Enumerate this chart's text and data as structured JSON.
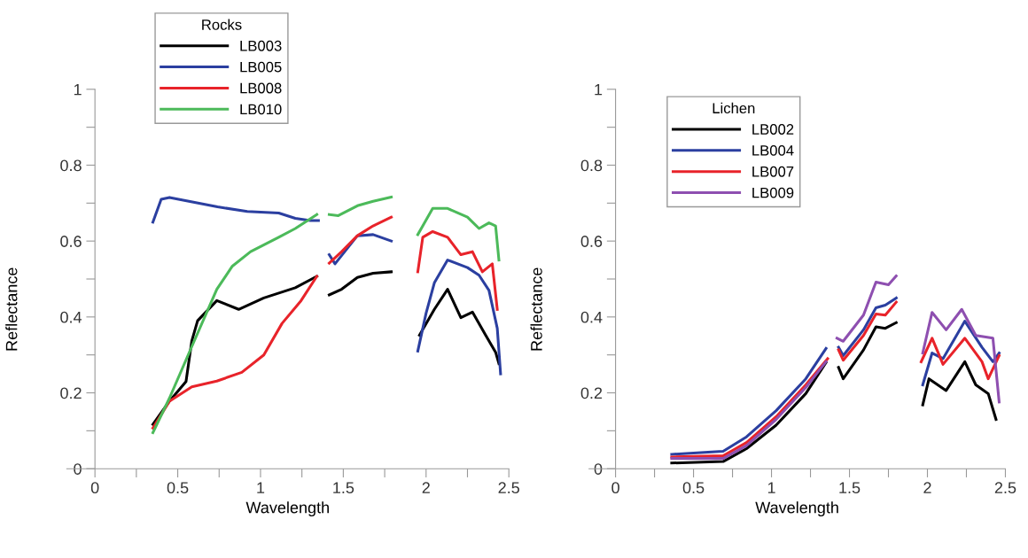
{
  "chart_data": [
    {
      "type": "line",
      "xlabel": "Wavelength",
      "ylabel": "Reflectance",
      "legend_title": "Rocks",
      "legend": "top",
      "grid": false,
      "xlim": [
        -0.17,
        2.5
      ],
      "ylim": [
        0,
        1
      ],
      "xticks": [
        0,
        {
          "value": 0.25,
          "label": null
        },
        0.5,
        {
          "value": 0.75,
          "label": null
        },
        1,
        {
          "value": 1.25,
          "label": null
        },
        1.5,
        {
          "value": 1.75,
          "label": null
        },
        2,
        {
          "value": 2.25,
          "label": null
        },
        2.5
      ],
      "yticks": [
        0,
        {
          "value": 0.1,
          "label": null
        },
        0.2,
        {
          "value": 0.3,
          "label": null
        },
        0.4,
        {
          "value": 0.5,
          "label": null
        },
        0.6,
        {
          "value": 0.7,
          "label": null
        },
        0.8,
        {
          "value": 0.9,
          "label": null
        },
        1
      ],
      "series": [
        {
          "name": "LB003",
          "color": "#000000",
          "x": [
            0.35,
            0.45,
            0.55,
            0.585,
            0.62,
            0.736,
            0.868,
            1.02,
            1.21,
            1.34,
            1.38,
            1.415,
            1.49,
            1.585,
            1.68,
            1.79,
            1.88,
            1.96,
            2.05,
            2.13,
            2.21,
            2.28,
            2.36,
            2.42,
            2.44
          ],
          "values": [
            0.117,
            0.178,
            0.23,
            0.337,
            0.39,
            0.443,
            0.42,
            0.45,
            0.477,
            0.507,
            null,
            0.458,
            0.473,
            0.504,
            0.515,
            0.519,
            null,
            0.352,
            0.42,
            0.473,
            0.398,
            0.413,
            0.352,
            0.307,
            0.277
          ]
        },
        {
          "name": "LB005",
          "color": "#2b3fa0",
          "x": [
            0.35,
            0.4,
            0.45,
            0.74,
            0.92,
            1.11,
            1.21,
            1.3,
            1.35,
            1.38,
            1.415,
            1.45,
            1.585,
            1.68,
            1.79,
            1.88,
            1.95,
            2.0,
            2.05,
            2.13,
            2.25,
            2.32,
            2.38,
            2.43,
            2.45
          ],
          "values": [
            0.65,
            0.71,
            0.715,
            0.69,
            0.678,
            0.674,
            0.66,
            0.654,
            0.654,
            null,
            0.564,
            0.54,
            0.614,
            0.617,
            0.6,
            null,
            0.31,
            0.41,
            0.49,
            0.55,
            0.53,
            0.51,
            0.47,
            0.37,
            0.25
          ]
        },
        {
          "name": "LB008",
          "color": "#e8232a",
          "x": [
            0.35,
            0.45,
            0.585,
            0.736,
            0.887,
            1.02,
            1.13,
            1.245,
            1.34,
            1.38,
            1.415,
            1.49,
            1.585,
            1.68,
            1.79,
            1.88,
            1.95,
            1.98,
            2.04,
            2.13,
            2.21,
            2.28,
            2.34,
            2.4,
            2.43
          ],
          "values": [
            0.107,
            0.178,
            0.216,
            0.231,
            0.254,
            0.3,
            0.383,
            0.443,
            0.507,
            null,
            0.542,
            0.572,
            0.614,
            0.64,
            0.663,
            null,
            0.519,
            0.61,
            0.625,
            0.61,
            0.564,
            0.572,
            0.519,
            0.54,
            0.42
          ]
        },
        {
          "name": "LB010",
          "color": "#4cba5a",
          "x": [
            0.35,
            0.45,
            0.585,
            0.736,
            0.83,
            0.94,
            1.11,
            1.21,
            1.34,
            1.38,
            1.415,
            1.47,
            1.585,
            1.68,
            1.79,
            1.88,
            1.95,
            2.04,
            2.13,
            2.25,
            2.32,
            2.38,
            2.42,
            2.44
          ],
          "values": [
            0.095,
            0.186,
            0.322,
            0.473,
            0.534,
            0.572,
            0.61,
            0.633,
            0.67,
            null,
            0.67,
            0.667,
            0.693,
            0.705,
            0.716,
            null,
            0.617,
            0.686,
            0.686,
            0.663,
            0.633,
            0.648,
            0.64,
            0.55
          ]
        }
      ]
    },
    {
      "type": "line",
      "xlabel": "Wavelength",
      "ylabel": "Reflectance",
      "legend_title": "Lichen",
      "legend": "top left",
      "grid": false,
      "xlim": [
        -0.17,
        2.5
      ],
      "ylim": [
        0,
        1
      ],
      "xticks": [
        0,
        {
          "value": 0.25,
          "label": null
        },
        0.5,
        {
          "value": 0.75,
          "label": null
        },
        1,
        {
          "value": 1.25,
          "label": null
        },
        1.5,
        {
          "value": 1.75,
          "label": null
        },
        2,
        {
          "value": 2.25,
          "label": null
        },
        2.5
      ],
      "yticks": [
        0,
        {
          "value": 0.1,
          "label": null
        },
        0.2,
        {
          "value": 0.3,
          "label": null
        },
        0.4,
        {
          "value": 0.5,
          "label": null
        },
        0.6,
        {
          "value": 0.7,
          "label": null
        },
        0.8,
        {
          "value": 0.9,
          "label": null
        },
        1
      ],
      "series": [
        {
          "name": "LB002",
          "color": "#000000",
          "x": [
            0.36,
            0.69,
            0.84,
            1.03,
            1.22,
            1.35,
            1.39,
            1.43,
            1.46,
            1.59,
            1.67,
            1.73,
            1.8,
            1.88,
            1.97,
            2.01,
            2.12,
            2.24,
            2.31,
            2.39,
            2.44
          ],
          "values": [
            0.015,
            0.019,
            0.053,
            0.115,
            0.198,
            0.28,
            null,
            0.267,
            0.237,
            0.313,
            0.374,
            0.37,
            0.385,
            null,
            0.168,
            0.237,
            0.206,
            0.282,
            0.221,
            0.198,
            0.13
          ]
        },
        {
          "name": "LB004",
          "color": "#2b3fa0",
          "x": [
            0.36,
            0.69,
            0.84,
            1.03,
            1.22,
            1.35,
            1.39,
            1.43,
            1.46,
            1.59,
            1.67,
            1.73,
            1.8,
            1.88,
            1.97,
            2.03,
            2.1,
            2.24,
            2.35,
            2.42,
            2.46
          ],
          "values": [
            0.038,
            0.046,
            0.084,
            0.153,
            0.237,
            0.317,
            null,
            0.32,
            0.298,
            0.366,
            0.424,
            0.431,
            0.45,
            null,
            0.221,
            0.305,
            0.29,
            0.389,
            0.32,
            0.282,
            0.305
          ]
        },
        {
          "name": "LB007",
          "color": "#e8232a",
          "x": [
            0.36,
            0.69,
            0.84,
            1.03,
            1.22,
            1.36,
            1.39,
            1.43,
            1.46,
            1.59,
            1.67,
            1.73,
            1.8,
            1.88,
            1.96,
            2.03,
            2.1,
            2.24,
            2.35,
            2.39,
            2.46
          ],
          "values": [
            0.031,
            0.034,
            0.069,
            0.137,
            0.221,
            0.29,
            null,
            0.313,
            0.286,
            0.351,
            0.408,
            0.405,
            0.439,
            null,
            0.282,
            0.344,
            0.275,
            0.344,
            0.282,
            0.237,
            0.298
          ]
        },
        {
          "name": "LB009",
          "color": "#8e4fb0",
          "x": [
            0.36,
            0.69,
            0.84,
            1.03,
            1.22,
            1.35,
            1.39,
            1.42,
            1.46,
            1.59,
            1.67,
            1.75,
            1.8,
            1.88,
            1.97,
            2.03,
            2.12,
            2.22,
            2.31,
            2.42,
            2.46
          ],
          "values": [
            0.027,
            0.027,
            0.061,
            0.13,
            0.214,
            0.282,
            null,
            0.344,
            0.336,
            0.405,
            0.492,
            0.485,
            0.508,
            null,
            0.305,
            0.412,
            0.366,
            0.42,
            0.351,
            0.344,
            0.176
          ]
        }
      ]
    }
  ]
}
